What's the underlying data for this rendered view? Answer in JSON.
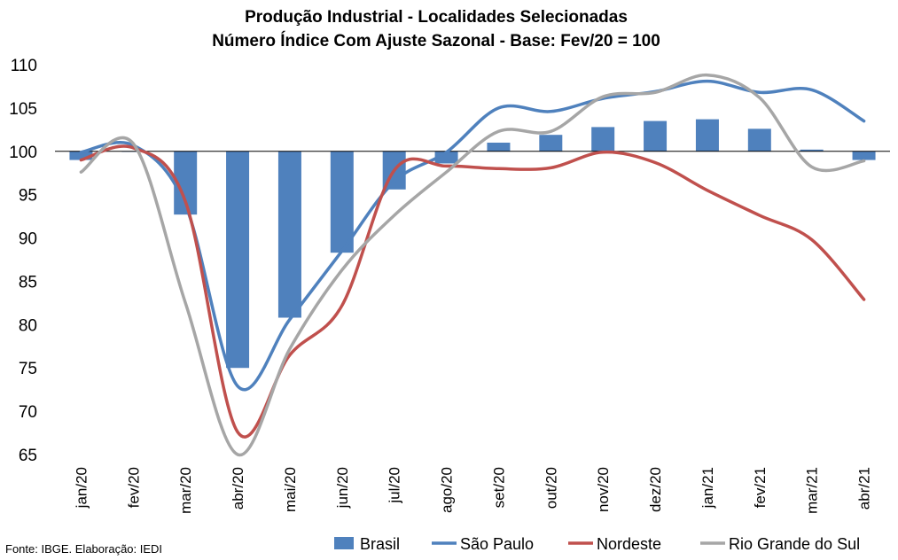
{
  "chart_data": {
    "type": "bar+line",
    "title": "Produção Industrial - Localidades Selecionadas",
    "subtitle": "Número Índice Com Ajuste Sazonal - Base: Fev/20 = 100",
    "categories": [
      "jan/20",
      "fev/20",
      "mar/20",
      "abr/20",
      "mai/20",
      "jun/20",
      "jul/20",
      "ago/20",
      "set/20",
      "out/20",
      "nov/20",
      "dez/20",
      "jan/21",
      "fev/21",
      "mar/21",
      "abr/21"
    ],
    "yticks": [
      65,
      70,
      75,
      80,
      85,
      90,
      95,
      100,
      105,
      110
    ],
    "ylim": [
      65,
      110
    ],
    "bar_baseline": 100,
    "grid": false,
    "legend_position": "bottom-right",
    "series": [
      {
        "name": "Brasil",
        "type": "bar",
        "color": "#4F81BD",
        "values": [
          99.0,
          100.0,
          92.7,
          75.0,
          80.8,
          88.3,
          95.6,
          98.6,
          101.0,
          101.9,
          102.8,
          103.5,
          103.7,
          102.6,
          100.2,
          99.0
        ]
      },
      {
        "name": "São Paulo",
        "type": "line",
        "color": "#4F81BD",
        "values": [
          99.9,
          100.7,
          93.8,
          72.9,
          80.6,
          88.5,
          96.5,
          99.9,
          105.0,
          104.6,
          106.1,
          106.9,
          108.1,
          106.8,
          107.1,
          103.5
        ]
      },
      {
        "name": "Nordeste",
        "type": "line",
        "color": "#C0504D",
        "values": [
          99.0,
          100.4,
          94.2,
          67.6,
          76.5,
          82.2,
          97.8,
          98.3,
          98.0,
          98.1,
          99.9,
          98.7,
          95.5,
          92.6,
          89.8,
          82.9
        ]
      },
      {
        "name": "Rio Grande do Sul",
        "type": "line",
        "color": "#A6A6A6",
        "values": [
          97.6,
          100.9,
          82.5,
          65.0,
          77.2,
          86.3,
          92.6,
          97.6,
          102.3,
          102.3,
          106.3,
          106.8,
          108.8,
          106.2,
          98.2,
          98.9
        ]
      }
    ]
  },
  "source": "Fonte: IBGE. Elaboração: IEDI"
}
